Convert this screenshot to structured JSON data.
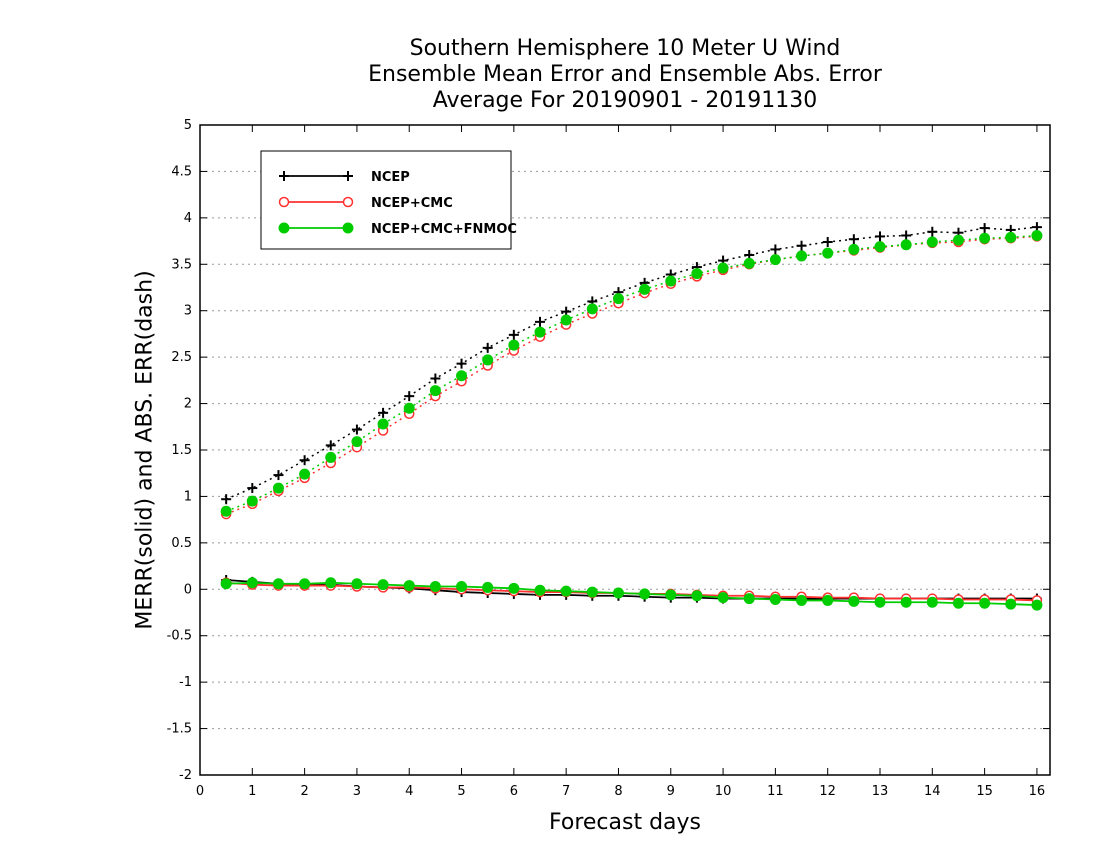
{
  "chart_data": {
    "type": "line",
    "title_lines": [
      "Southern Hemisphere 10 Meter U Wind",
      "Ensemble Mean Error and Ensemble Abs. Error",
      "Average For 20190901 - 20191130"
    ],
    "xlabel": "Forecast days",
    "ylabel": "MERR(solid) and ABS. ERR(dash)",
    "xlim": [
      0,
      16.25
    ],
    "ylim": [
      -2,
      5
    ],
    "xticks": [
      "0",
      "1",
      "2",
      "3",
      "4",
      "5",
      "6",
      "7",
      "8",
      "9",
      "10",
      "11",
      "12",
      "13",
      "14",
      "15",
      "16"
    ],
    "yticks": [
      "-2",
      "-1.5",
      "-1",
      "-0.5",
      "0",
      "0.5",
      "1",
      "1.5",
      "2",
      "2.5",
      "3",
      "3.5",
      "4",
      "4.5",
      "5"
    ],
    "grid": "horizontal dotted",
    "legend_position": "top-left",
    "x": [
      0.5,
      1,
      1.5,
      2,
      2.5,
      3,
      3.5,
      4,
      4.5,
      5,
      5.5,
      6,
      6.5,
      7,
      7.5,
      8,
      8.5,
      9,
      9.5,
      10,
      10.5,
      11,
      11.5,
      12,
      12.5,
      13,
      13.5,
      14,
      14.5,
      15,
      15.5,
      16
    ],
    "series": [
      {
        "name": "NCEP",
        "color": "#000000",
        "marker": "plus",
        "abs_err": [
          0.97,
          1.09,
          1.23,
          1.39,
          1.55,
          1.72,
          1.9,
          2.08,
          2.27,
          2.43,
          2.6,
          2.74,
          2.88,
          2.99,
          3.1,
          3.2,
          3.3,
          3.39,
          3.47,
          3.54,
          3.6,
          3.66,
          3.7,
          3.74,
          3.77,
          3.8,
          3.81,
          3.85,
          3.84,
          3.89,
          3.87,
          3.9
        ],
        "mean_err": [
          0.1,
          0.08,
          0.06,
          0.05,
          0.05,
          0.03,
          0.02,
          0.01,
          -0.01,
          -0.03,
          -0.04,
          -0.05,
          -0.06,
          -0.06,
          -0.07,
          -0.07,
          -0.08,
          -0.09,
          -0.09,
          -0.1,
          -0.1,
          -0.1,
          -0.1,
          -0.1,
          -0.1,
          -0.1,
          -0.1,
          -0.1,
          -0.1,
          -0.1,
          -0.1,
          -0.1
        ]
      },
      {
        "name": "NCEP+CMC",
        "color": "#ff3030",
        "marker": "open-circle",
        "abs_err": [
          0.81,
          0.92,
          1.06,
          1.2,
          1.36,
          1.53,
          1.71,
          1.89,
          2.08,
          2.24,
          2.41,
          2.57,
          2.72,
          2.85,
          2.97,
          3.08,
          3.19,
          3.29,
          3.37,
          3.44,
          3.5,
          3.55,
          3.59,
          3.62,
          3.65,
          3.68,
          3.71,
          3.73,
          3.74,
          3.77,
          3.78,
          3.8
        ],
        "mean_err": [
          0.07,
          0.05,
          0.04,
          0.04,
          0.04,
          0.03,
          0.02,
          0.02,
          0.01,
          0.0,
          -0.01,
          -0.02,
          -0.03,
          -0.03,
          -0.04,
          -0.04,
          -0.05,
          -0.05,
          -0.06,
          -0.07,
          -0.07,
          -0.08,
          -0.08,
          -0.09,
          -0.09,
          -0.1,
          -0.1,
          -0.1,
          -0.11,
          -0.11,
          -0.11,
          -0.12
        ]
      },
      {
        "name": "NCEP+CMC+FNMOC",
        "color": "#00cc00",
        "marker": "filled-circle",
        "abs_err": [
          0.84,
          0.95,
          1.09,
          1.24,
          1.42,
          1.59,
          1.78,
          1.95,
          2.14,
          2.3,
          2.47,
          2.63,
          2.77,
          2.9,
          3.02,
          3.13,
          3.23,
          3.32,
          3.4,
          3.46,
          3.51,
          3.55,
          3.59,
          3.62,
          3.66,
          3.69,
          3.71,
          3.74,
          3.76,
          3.78,
          3.79,
          3.81
        ],
        "mean_err": [
          0.06,
          0.07,
          0.06,
          0.06,
          0.07,
          0.06,
          0.05,
          0.04,
          0.03,
          0.03,
          0.02,
          0.01,
          -0.01,
          -0.02,
          -0.03,
          -0.04,
          -0.05,
          -0.06,
          -0.07,
          -0.09,
          -0.1,
          -0.11,
          -0.12,
          -0.12,
          -0.13,
          -0.14,
          -0.14,
          -0.14,
          -0.15,
          -0.15,
          -0.16,
          -0.17
        ]
      }
    ]
  }
}
